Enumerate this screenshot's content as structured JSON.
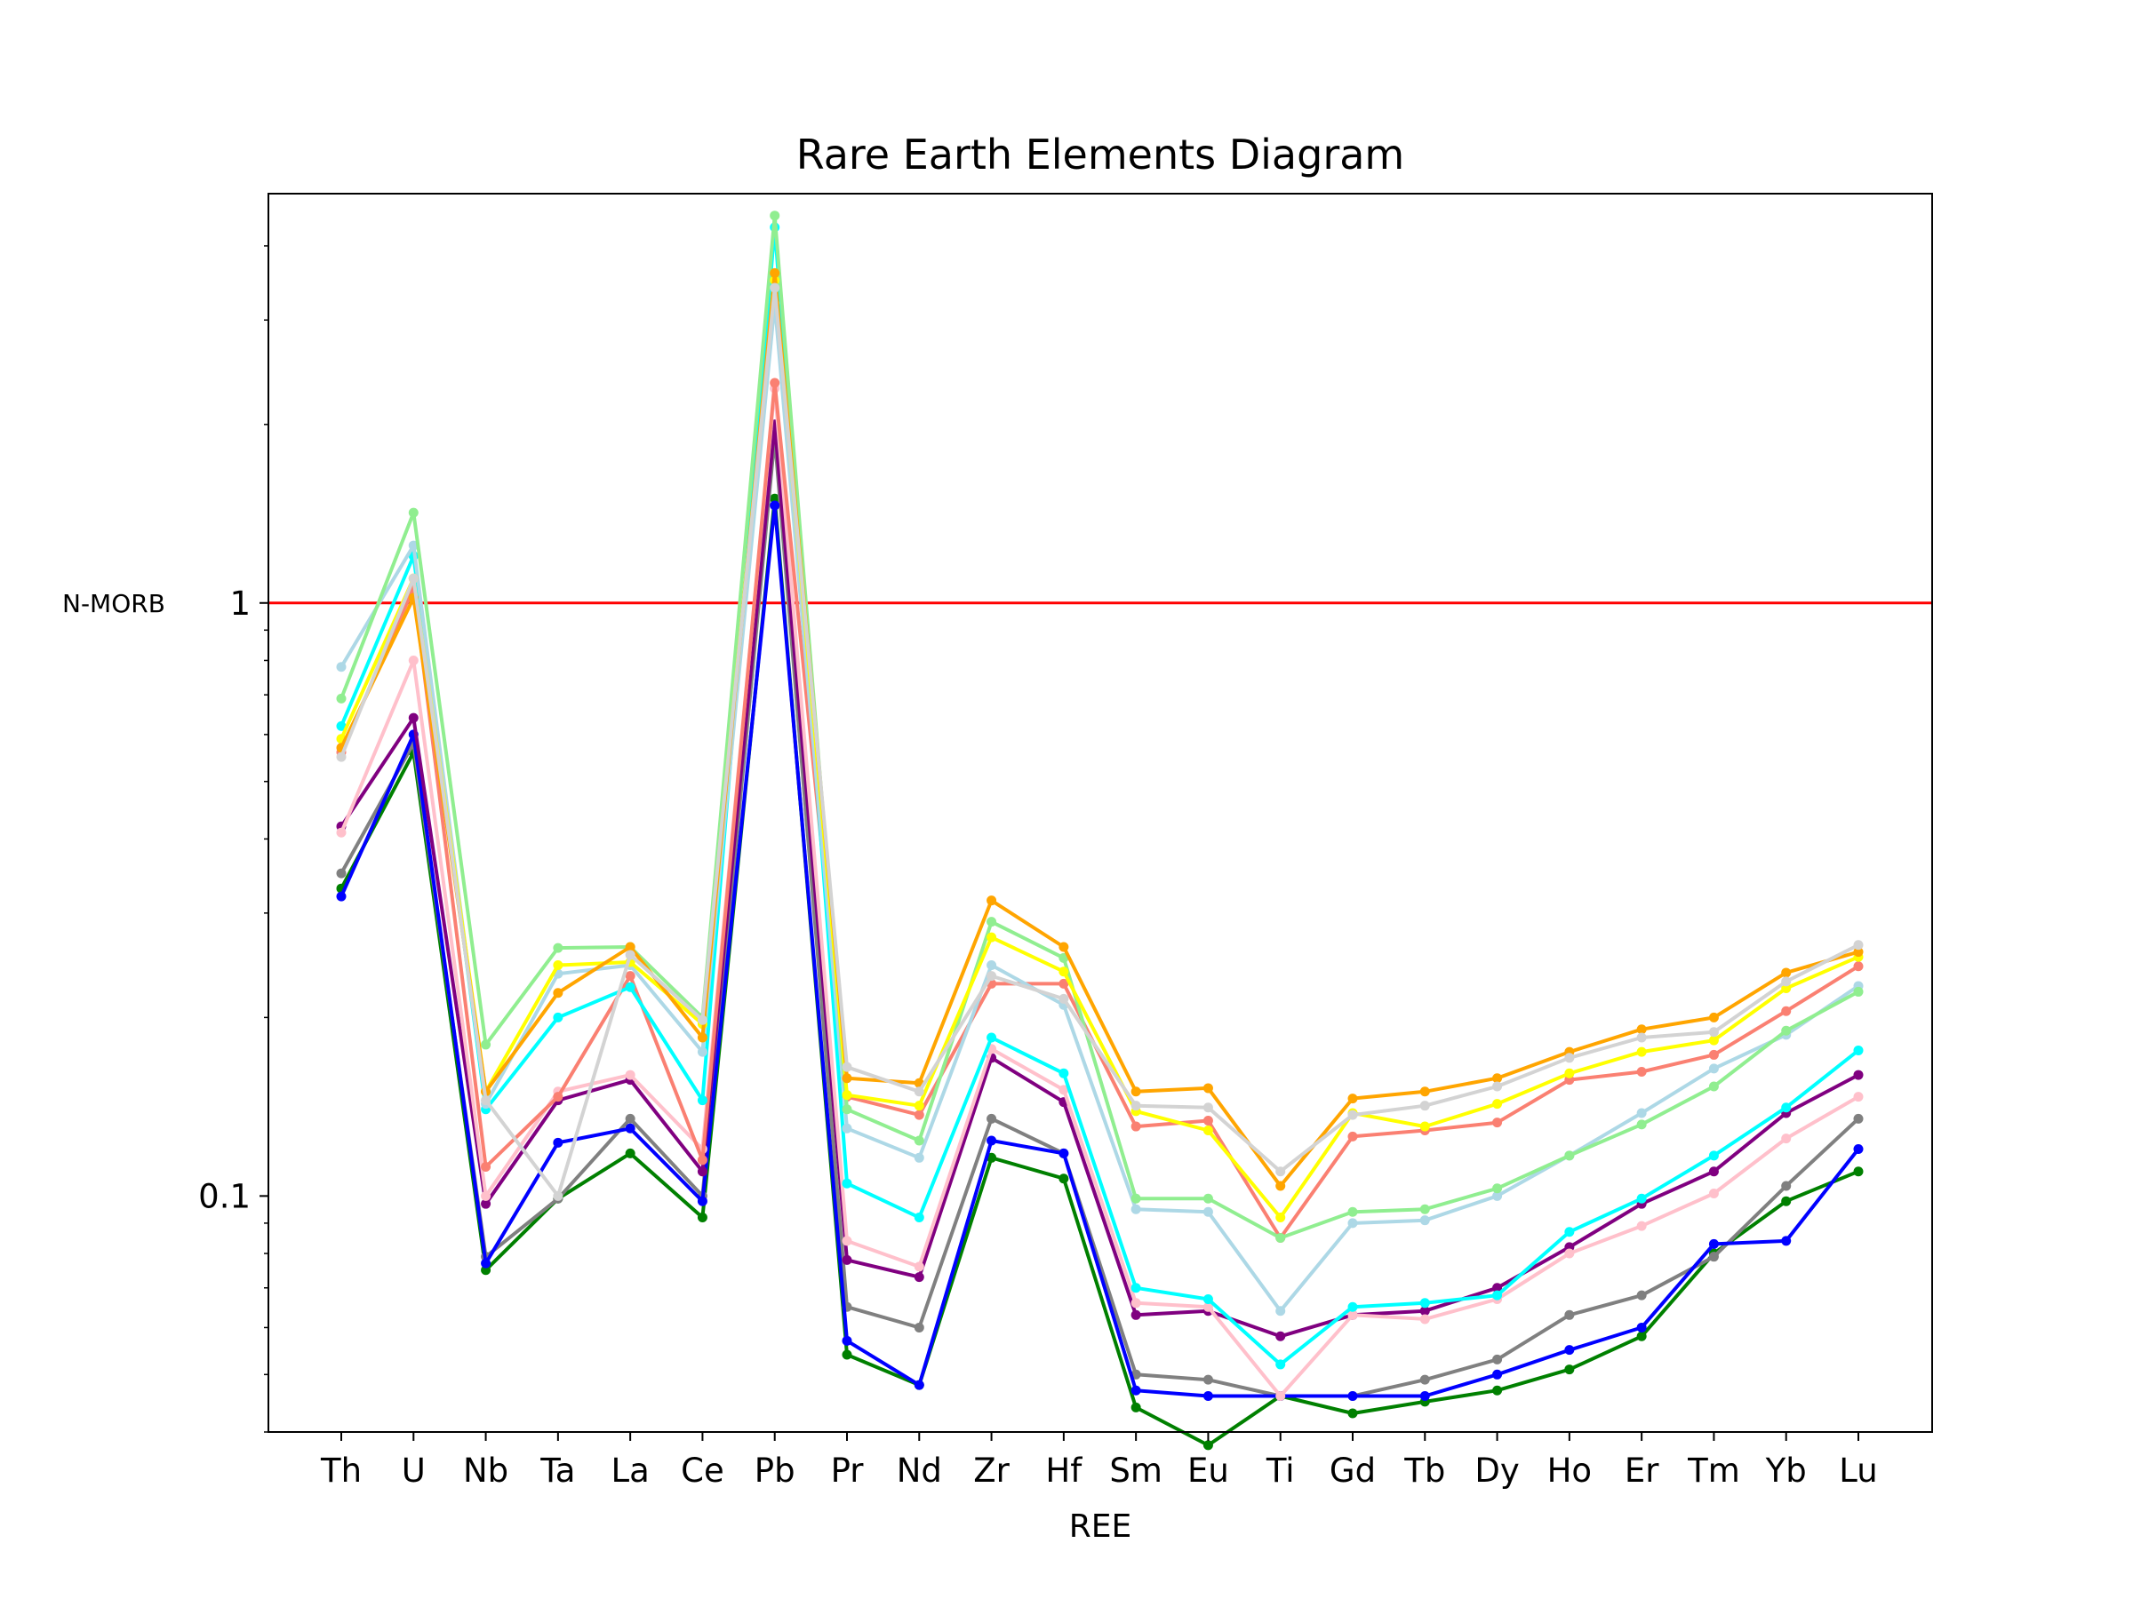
{
  "chart_data": {
    "type": "line",
    "title": "Rare Earth Elements Diagram",
    "xlabel": "REE",
    "ylabel": "",
    "yscale": "log",
    "ylim": [
      0.04,
      4.9
    ],
    "grid": false,
    "legend": "none",
    "y_ticks": [
      {
        "value": 0.1,
        "label": "0.1"
      },
      {
        "value": 1,
        "label": "1"
      }
    ],
    "reference_line": {
      "value": 1,
      "label": "N-MORB",
      "color": "#ff0000"
    },
    "categories": [
      "Th",
      "U",
      "Nb",
      "Ta",
      "La",
      "Ce",
      "Pb",
      "Pr",
      "Nd",
      "Zr",
      "Hf",
      "Sm",
      "Eu",
      "Ti",
      "Gd",
      "Tb",
      "Dy",
      "Ho",
      "Er",
      "Tm",
      "Yb",
      "Lu"
    ],
    "series": [
      {
        "color": "#008000",
        "values": [
          0.33,
          0.56,
          0.075,
          0.099,
          0.118,
          0.092,
          1.5,
          0.054,
          0.048,
          0.116,
          0.107,
          0.044,
          0.038,
          0.046,
          0.043,
          0.045,
          0.047,
          0.051,
          0.058,
          0.08,
          0.098,
          0.11
        ]
      },
      {
        "color": "#808080",
        "values": [
          0.35,
          0.58,
          0.079,
          0.099,
          0.135,
          0.1,
          1.9,
          0.065,
          0.06,
          0.135,
          0.118,
          0.05,
          0.049,
          0.046,
          0.046,
          0.049,
          0.053,
          0.063,
          0.068,
          0.079,
          0.104,
          0.135
        ]
      },
      {
        "color": "#0000ff",
        "values": [
          0.32,
          0.6,
          0.077,
          0.123,
          0.13,
          0.098,
          1.46,
          0.057,
          0.048,
          0.124,
          0.118,
          0.047,
          0.046,
          0.046,
          0.046,
          0.046,
          0.05,
          0.055,
          0.06,
          0.083,
          0.084,
          0.12
        ]
      },
      {
        "color": "#800080",
        "values": [
          0.42,
          0.64,
          0.097,
          0.145,
          0.157,
          0.11,
          2.0,
          0.078,
          0.073,
          0.171,
          0.144,
          0.063,
          0.064,
          0.058,
          0.063,
          0.064,
          0.07,
          0.082,
          0.097,
          0.11,
          0.138,
          0.16
        ]
      },
      {
        "color": "#ffc0cb",
        "values": [
          0.41,
          0.8,
          0.1,
          0.15,
          0.16,
          0.12,
          2.3,
          0.084,
          0.076,
          0.177,
          0.151,
          0.066,
          0.065,
          0.046,
          0.063,
          0.062,
          0.067,
          0.08,
          0.089,
          0.101,
          0.125,
          0.147
        ]
      },
      {
        "color": "#fa8072",
        "values": [
          0.56,
          1.06,
          0.112,
          0.147,
          0.235,
          0.115,
          2.35,
          0.147,
          0.137,
          0.228,
          0.228,
          0.131,
          0.134,
          0.085,
          0.126,
          0.129,
          0.133,
          0.157,
          0.162,
          0.173,
          0.205,
          0.244
        ]
      },
      {
        "color": "#00ffff",
        "values": [
          0.62,
          1.2,
          0.14,
          0.2,
          0.225,
          0.145,
          4.3,
          0.105,
          0.092,
          0.185,
          0.161,
          0.07,
          0.067,
          0.052,
          0.065,
          0.066,
          0.068,
          0.087,
          0.099,
          0.117,
          0.141,
          0.176
        ]
      },
      {
        "color": "#add8e6",
        "values": [
          0.78,
          1.25,
          0.143,
          0.237,
          0.245,
          0.175,
          3.2,
          0.13,
          0.116,
          0.245,
          0.21,
          0.095,
          0.094,
          0.064,
          0.09,
          0.091,
          0.1,
          0.117,
          0.138,
          0.164,
          0.187,
          0.226
        ]
      },
      {
        "color": "#90ee90",
        "values": [
          0.69,
          1.42,
          0.18,
          0.262,
          0.263,
          0.2,
          4.5,
          0.14,
          0.124,
          0.29,
          0.252,
          0.099,
          0.099,
          0.085,
          0.094,
          0.095,
          0.103,
          0.117,
          0.132,
          0.153,
          0.19,
          0.221
        ]
      },
      {
        "color": "#ffff00",
        "values": [
          0.59,
          1.1,
          0.15,
          0.245,
          0.248,
          0.195,
          3.5,
          0.148,
          0.142,
          0.273,
          0.239,
          0.139,
          0.129,
          0.092,
          0.138,
          0.131,
          0.143,
          0.161,
          0.175,
          0.183,
          0.224,
          0.253
        ]
      },
      {
        "color": "#ffa500",
        "values": [
          0.57,
          1.02,
          0.15,
          0.22,
          0.263,
          0.185,
          3.6,
          0.158,
          0.155,
          0.315,
          0.263,
          0.15,
          0.152,
          0.104,
          0.146,
          0.15,
          0.158,
          0.175,
          0.191,
          0.2,
          0.238,
          0.258
        ]
      },
      {
        "color": "#d3d3d3",
        "values": [
          0.55,
          1.1,
          0.145,
          0.1,
          0.255,
          0.198,
          3.4,
          0.165,
          0.15,
          0.235,
          0.215,
          0.142,
          0.141,
          0.11,
          0.137,
          0.142,
          0.153,
          0.171,
          0.185,
          0.189,
          0.23,
          0.265
        ]
      }
    ]
  }
}
